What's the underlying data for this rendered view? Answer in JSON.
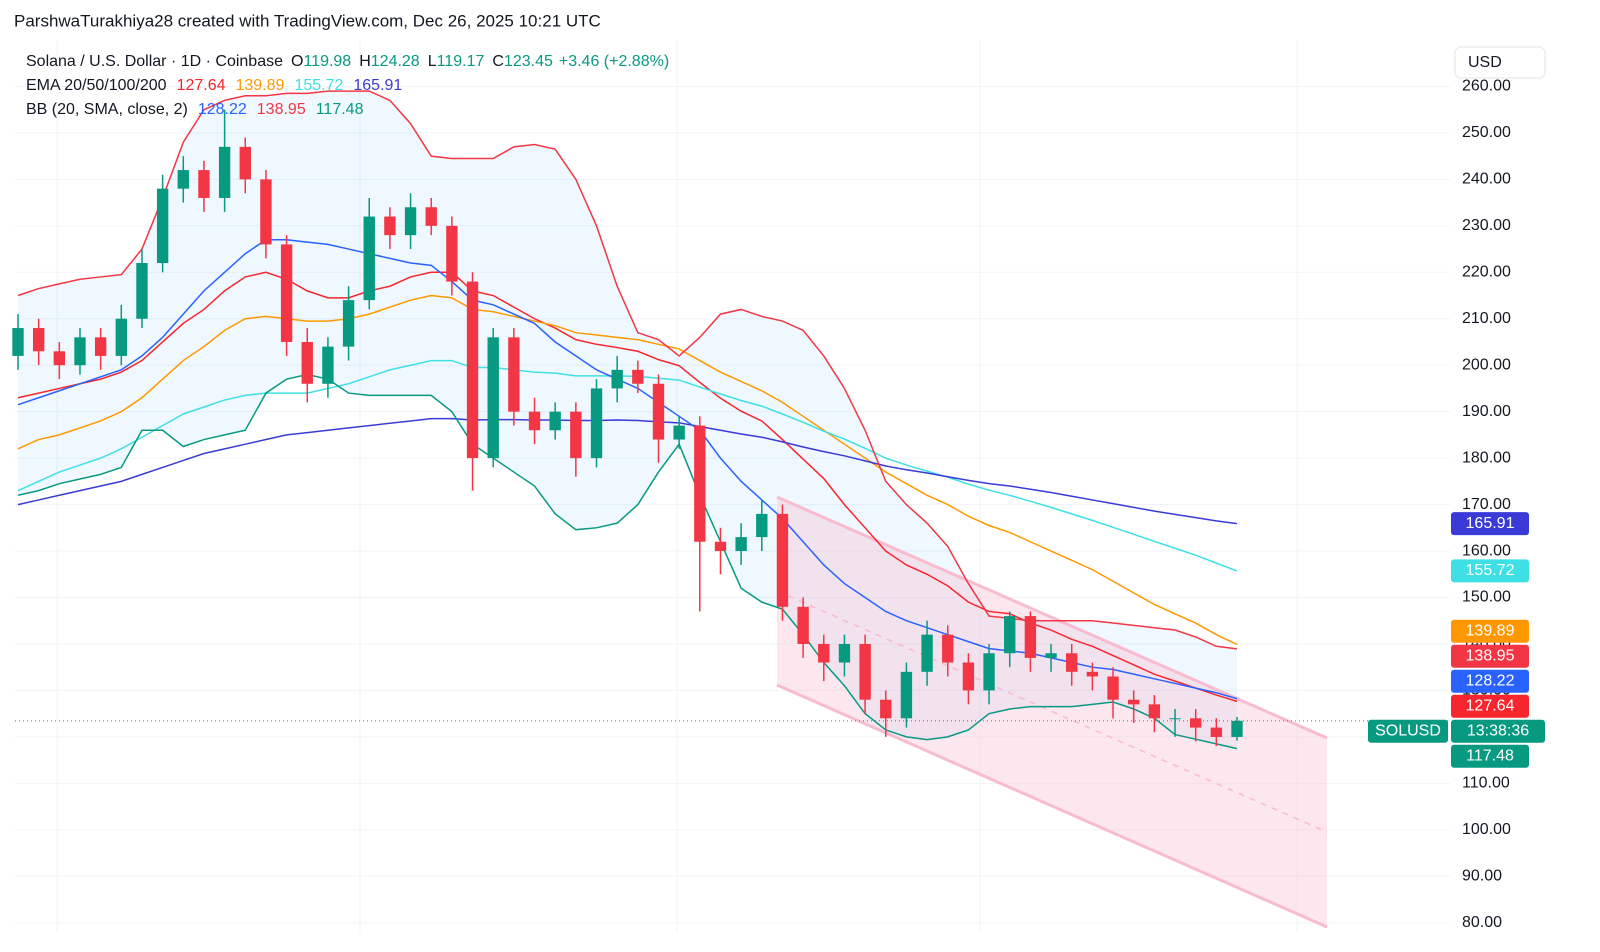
{
  "chart_data": {
    "type": "candlestick",
    "attribution": "ParshwaTurakhiya28 created with TradingView.com, Dec 26, 2025 10:21 UTC",
    "title": "Solana / U.S. Dollar · 1D · Coinbase",
    "ohlc_keys": {
      "open": "O",
      "high": "H",
      "low": "L",
      "close": "C"
    },
    "change_label": "+3.46 (+2.88%)",
    "currency": "USD",
    "symbol_label": "SOLUSD",
    "countdown": "13:38:36",
    "categories": [
      null,
      null,
      null,
      null,
      null,
      null,
      null,
      null,
      null,
      null,
      null,
      null,
      null,
      null,
      null,
      null,
      null,
      null,
      null,
      null,
      null,
      null,
      null,
      null,
      null,
      null,
      null,
      null,
      null,
      null,
      null,
      null,
      null,
      null,
      null,
      null,
      null,
      null,
      null,
      null,
      null,
      null,
      null,
      null,
      null,
      null,
      null,
      null,
      null,
      null,
      null,
      null,
      null,
      null,
      null,
      null,
      null,
      null,
      null,
      null
    ],
    "candles": {
      "up_color": "#089981",
      "down_color": "#f23645",
      "open": [
        202,
        208,
        203,
        200,
        206,
        202,
        210,
        222,
        238,
        242,
        236,
        247,
        240,
        226,
        205,
        196,
        204,
        214,
        232,
        228,
        234,
        230,
        218,
        180,
        206,
        190,
        186,
        190,
        180,
        195,
        199,
        196,
        184,
        187,
        162,
        160,
        163,
        168,
        148,
        140,
        136,
        140,
        128,
        124,
        134,
        142,
        136,
        130,
        138,
        146,
        137,
        138,
        134,
        133,
        128,
        127,
        124,
        124,
        122,
        119.98
      ],
      "high": [
        211,
        210,
        205,
        208,
        208,
        213,
        225,
        241,
        245,
        244,
        255,
        249,
        242,
        228,
        208,
        206,
        217,
        236,
        234,
        237,
        236,
        232,
        220,
        208,
        208,
        193,
        192,
        192,
        197,
        202,
        201,
        198,
        189,
        189,
        165,
        166,
        171,
        170,
        150,
        142,
        142,
        142,
        130,
        136,
        145,
        144,
        138,
        140,
        147,
        147,
        140,
        140,
        136,
        135,
        130,
        129,
        126,
        126,
        124,
        124.28
      ],
      "low": [
        199,
        200,
        197,
        198,
        199,
        200,
        208,
        220,
        235,
        233,
        233,
        237,
        223,
        202,
        192,
        193,
        201,
        212,
        225,
        225,
        228,
        215,
        173,
        178,
        187,
        183,
        184,
        176,
        178,
        192,
        194,
        179,
        182,
        147,
        155,
        157,
        160,
        145,
        137,
        132,
        133,
        125,
        120,
        122,
        131,
        133,
        127,
        127,
        135,
        134,
        134,
        131,
        130,
        124,
        123,
        121,
        120,
        119,
        118,
        119.17
      ],
      "close": [
        208,
        203,
        200,
        206,
        202,
        210,
        222,
        238,
        242,
        236,
        247,
        240,
        226,
        205,
        196,
        204,
        214,
        232,
        228,
        234,
        230,
        218,
        180,
        206,
        190,
        186,
        190,
        180,
        195,
        199,
        196,
        184,
        187,
        162,
        160,
        163,
        168,
        148,
        140,
        136,
        140,
        128,
        124,
        134,
        142,
        136,
        130,
        138,
        146,
        137,
        138,
        134,
        133,
        128,
        127,
        124,
        124,
        122,
        119.98,
        123.45
      ]
    },
    "indicators": [
      {
        "name": "EMA 20/50/100/200",
        "series": [
          {
            "color": "#f7252d",
            "values": [
              193,
              194,
              195,
              196,
              197,
              198.5,
              201,
              205,
              209,
              212,
              216,
              219,
              220,
              218.5,
              216,
              214.5,
              214.5,
              216,
              217,
              219,
              220,
              220,
              216,
              215,
              212.5,
              210,
              208,
              205.5,
              204.5,
              203.8,
              203,
              201.2,
              199.9,
              196.3,
              192.9,
              190.1,
              188,
              184,
              179.8,
              175.6,
              170,
              165,
              160,
              157,
              155,
              152.5,
              149,
              147,
              146.5,
              144.5,
              143,
              141,
              139.5,
              137.5,
              135.5,
              133.5,
              132,
              130.5,
              129,
              127.64
            ]
          },
          {
            "color": "#ff9800",
            "values": [
              182,
              184,
              185,
              186.5,
              188,
              190,
              193,
              197,
              201,
              204,
              207.5,
              210,
              210.5,
              210,
              209.5,
              209.5,
              210,
              211,
              212.5,
              214,
              215,
              214.5,
              212,
              211.5,
              210.5,
              209.5,
              208.5,
              207,
              206.5,
              206,
              205.5,
              204.5,
              203.5,
              201,
              198.5,
              196.5,
              194.5,
              192,
              189,
              186,
              183,
              180,
              177,
              174.5,
              172,
              170,
              167.5,
              165.5,
              164,
              162,
              160,
              158,
              156,
              153.5,
              151,
              148.5,
              146.5,
              144.5,
              142,
              139.89
            ]
          },
          {
            "color": "#3ee0e6",
            "values": [
              173,
              175,
              177,
              178.5,
              180,
              182,
              184.5,
              187,
              189.5,
              191,
              192.5,
              193.5,
              194,
              194,
              194,
              195,
              196,
              197.5,
              199,
              200,
              201,
              201,
              199.5,
              199.5,
              199,
              198.5,
              198.3,
              197.7,
              197.7,
              197.7,
              197.6,
              197.2,
              196.8,
              195.3,
              193.8,
              192.4,
              191.2,
              189.5,
              187.7,
              185.8,
              184.1,
              182.1,
              180,
              178.5,
              177.2,
              175.9,
              174.4,
              173.1,
              172,
              170.7,
              169.4,
              168,
              166.6,
              165.1,
              163.6,
              162.1,
              160.6,
              159.1,
              157.4,
              155.72
            ]
          },
          {
            "color": "#3a3ad8",
            "values": [
              170,
              171,
              172,
              173,
              174,
              175,
              176.5,
              178,
              179.5,
              181,
              182,
              183,
              184,
              185,
              185.5,
              186,
              186.5,
              187,
              187.5,
              188,
              188.5,
              188.5,
              188.2,
              188.3,
              188.3,
              188.2,
              188.2,
              188.1,
              188.1,
              188.2,
              188.1,
              187.8,
              187.6,
              186.8,
              186,
              185.2,
              184.5,
              183.5,
              182.4,
              181.4,
              180.5,
              179.4,
              178.3,
              177.5,
              176.8,
              176,
              175.2,
              174.5,
              174,
              173.3,
              172.6,
              171.8,
              171,
              170.2,
              169.4,
              168.6,
              167.9,
              167.2,
              166.5,
              165.91
            ]
          }
        ]
      },
      {
        "name": "BB (20, SMA, close, 2)",
        "series": [
          {
            "color": "#2962ff",
            "values": [
              191.5,
              193,
              194.5,
              196,
              197.5,
              199,
              202,
              206,
              211,
              216,
              220,
              224,
              227,
              227,
              226.5,
              226,
              225,
              224,
              223,
              222,
              221.5,
              218,
              214,
              213,
              211,
              209,
              205,
              202,
              199,
              197,
              195,
              192,
              189,
              186,
              180,
              175,
              171,
              167,
              162,
              157,
              153,
              150,
              147,
              145,
              143.5,
              142,
              140.5,
              139,
              138.5,
              138,
              137,
              136,
              135,
              134.5,
              133.5,
              132.5,
              131.5,
              130.5,
              129.5,
              128.22
            ]
          },
          {
            "color": "#f23645",
            "values": [
              215,
              216.5,
              217.5,
              218.5,
              219,
              219.5,
              225,
              236,
              248,
              255,
              257,
              258,
              258,
              258.5,
              258.5,
              259,
              259,
              259,
              257,
              252,
              245,
              244.5,
              244.5,
              244.5,
              247,
              247.5,
              246.5,
              240,
              230,
              217,
              207,
              205.5,
              202,
              206,
              211,
              212,
              210.5,
              209.5,
              207.5,
              202,
              195,
              186,
              175,
              170,
              166,
              161,
              153,
              146,
              145.5,
              145,
              145,
              145,
              145,
              144.5,
              144,
              143.5,
              143,
              141.5,
              139.5,
              138.95
            ]
          },
          {
            "color": "#089981",
            "values": [
              172,
              173,
              174.5,
              175.5,
              176.5,
              178,
              186,
              186,
              182.5,
              184,
              185,
              186,
              194,
              197,
              198,
              197,
              194,
              193.5,
              193.5,
              193.5,
              193.5,
              190,
              183,
              180,
              177,
              174,
              168,
              164.6,
              165,
              166,
              170,
              177,
              183,
              172,
              162,
              152,
              149,
              147.5,
              142,
              136,
              131,
              125,
              121.5,
              120,
              119.4,
              120,
              121.5,
              125,
              126,
              126.5,
              126.5,
              126.5,
              127,
              127.5,
              126,
              124,
              120.5,
              119.5,
              118.5,
              117.48
            ]
          }
        ]
      }
    ],
    "ylim": [
      78,
      270
    ],
    "yticks": [
      {
        "value": 80,
        "label": "80.00"
      },
      {
        "value": 90,
        "label": "90.00"
      },
      {
        "value": 100,
        "label": "100.00"
      },
      {
        "value": 110,
        "label": "110.00"
      },
      {
        "value": 120,
        "label": "120.00"
      },
      {
        "value": 130,
        "label": "130.00"
      },
      {
        "value": 140,
        "label": "140.00"
      },
      {
        "value": 150,
        "label": "150.00"
      },
      {
        "value": 160,
        "label": "160.00"
      },
      {
        "value": 170,
        "label": "170.00"
      },
      {
        "value": 180,
        "label": "180.00"
      },
      {
        "value": 190,
        "label": "190.00"
      },
      {
        "value": 200,
        "label": "200.00"
      },
      {
        "value": 210,
        "label": "210.00"
      },
      {
        "value": 220,
        "label": "220.00"
      },
      {
        "value": 230,
        "label": "230.00"
      },
      {
        "value": 240,
        "label": "240.00"
      },
      {
        "value": 250,
        "label": "250.00"
      },
      {
        "value": 260,
        "label": "260.00"
      }
    ],
    "grid": true
  }
}
